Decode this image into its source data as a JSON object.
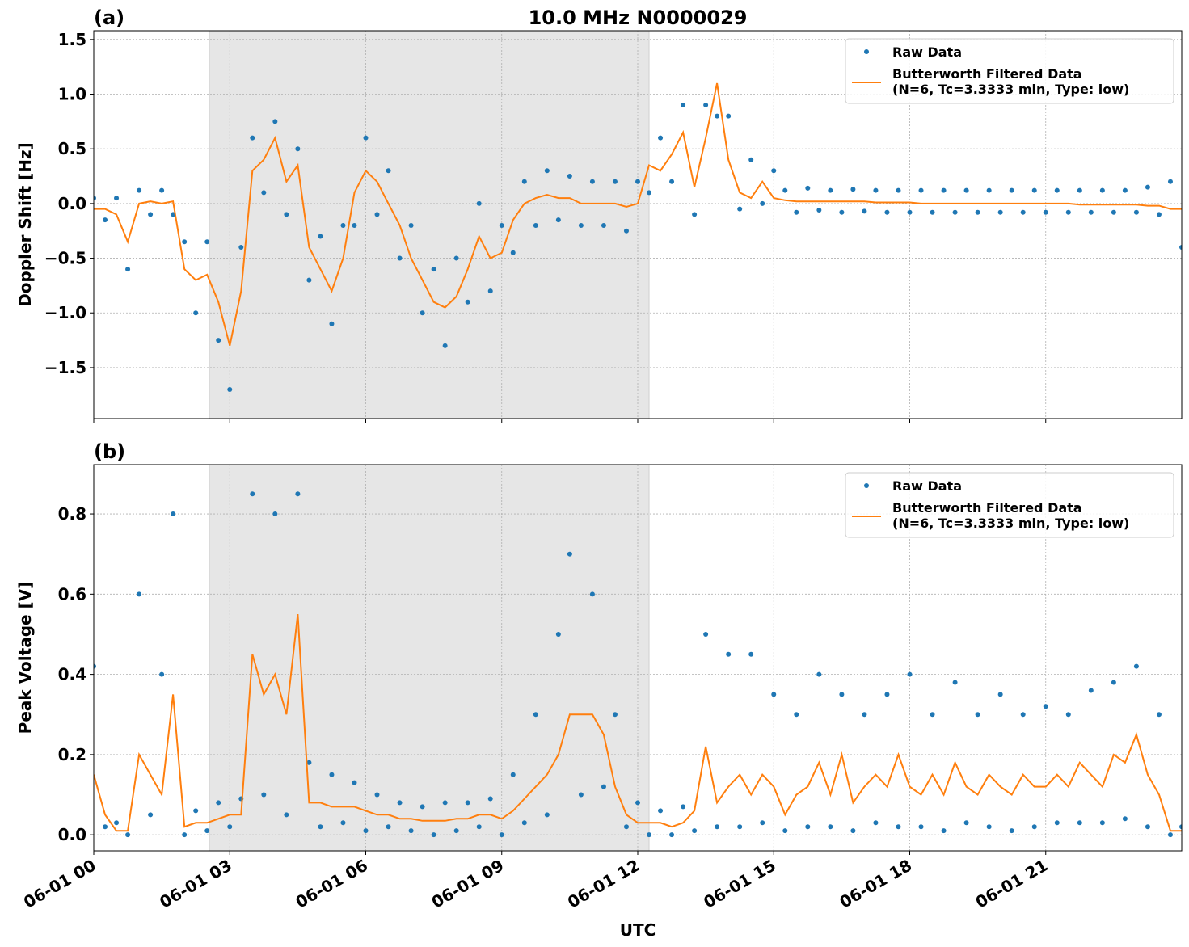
{
  "chart_data": [
    {
      "type": "line",
      "label": "(a)",
      "title": "10.0 MHz N0000029",
      "ylabel": "Doppler Shift [Hz]",
      "xlim": [
        0,
        24
      ],
      "xticks": [
        0,
        3,
        6,
        9,
        12,
        15,
        18,
        21
      ],
      "ylim": [
        -1.966,
        1.58
      ],
      "yticks": [
        -1.5,
        -1.0,
        -0.5,
        0.0,
        0.5,
        1.0,
        1.5
      ],
      "ytick_labels": [
        "−1.5",
        "−1.0",
        "−0.5",
        "0.0",
        "0.5",
        "1.0",
        "1.5"
      ],
      "grid": true,
      "legend": "upper right",
      "highlight_x": [
        2.55,
        12.25
      ],
      "x": [
        0,
        0.25,
        0.5,
        0.75,
        1,
        1.25,
        1.5,
        1.75,
        2,
        2.25,
        2.5,
        2.75,
        3,
        3.25,
        3.5,
        3.75,
        4,
        4.25,
        4.5,
        4.75,
        5,
        5.25,
        5.5,
        5.75,
        6,
        6.25,
        6.5,
        6.75,
        7,
        7.25,
        7.5,
        7.75,
        8,
        8.25,
        8.5,
        8.75,
        9,
        9.25,
        9.5,
        9.75,
        10,
        10.25,
        10.5,
        10.75,
        11,
        11.25,
        11.5,
        11.75,
        12,
        12.25,
        12.5,
        12.75,
        13,
        13.25,
        13.5,
        13.75,
        14,
        14.25,
        14.5,
        14.75,
        15,
        15.25,
        15.5,
        15.75,
        16,
        16.25,
        16.5,
        16.75,
        17,
        17.25,
        17.5,
        17.75,
        18,
        18.25,
        18.5,
        18.75,
        19,
        19.25,
        19.5,
        19.75,
        20,
        20.25,
        20.5,
        20.75,
        21,
        21.25,
        21.5,
        21.75,
        22,
        22.25,
        22.5,
        22.75,
        23,
        23.25,
        23.5,
        23.75,
        24
      ],
      "series": [
        {
          "name": "Raw Data",
          "kind": "scatter",
          "color": "#1f77b4",
          "values": [
            0.05,
            -0.15,
            0.05,
            -0.6,
            0.12,
            -0.1,
            0.12,
            -0.1,
            -0.35,
            -1.0,
            -0.35,
            -1.25,
            -1.7,
            -0.4,
            0.6,
            0.1,
            0.75,
            -0.1,
            0.5,
            -0.7,
            -0.3,
            -1.1,
            -0.2,
            -0.2,
            0.6,
            -0.1,
            0.3,
            -0.5,
            -0.2,
            -1.0,
            -0.6,
            -1.3,
            -0.5,
            -0.9,
            0.0,
            -0.8,
            -0.2,
            -0.45,
            0.2,
            -0.2,
            0.3,
            -0.15,
            0.25,
            -0.2,
            0.2,
            -0.2,
            0.2,
            -0.25,
            0.2,
            0.1,
            0.6,
            0.2,
            0.9,
            -0.1,
            0.9,
            0.8,
            0.8,
            -0.05,
            0.4,
            0.0,
            0.3,
            0.12,
            -0.08,
            0.14,
            -0.06,
            0.12,
            -0.08,
            0.13,
            -0.07,
            0.12,
            -0.08,
            0.12,
            -0.08,
            0.12,
            -0.08,
            0.12,
            -0.08,
            0.12,
            -0.08,
            0.12,
            -0.08,
            0.12,
            -0.08,
            0.12,
            -0.08,
            0.12,
            -0.08,
            0.12,
            -0.08,
            0.12,
            -0.08,
            0.12,
            -0.08,
            0.15,
            -0.1,
            0.2,
            -0.4
          ]
        },
        {
          "name": "Butterworth Filtered Data\n(N=6, Tc=3.3333 min, Type: low)",
          "kind": "line",
          "color": "#ff7f0e",
          "values": [
            -0.05,
            -0.05,
            -0.1,
            -0.35,
            0.0,
            0.02,
            0.0,
            0.02,
            -0.6,
            -0.7,
            -0.65,
            -0.9,
            -1.3,
            -0.8,
            0.3,
            0.4,
            0.6,
            0.2,
            0.35,
            -0.4,
            -0.6,
            -0.8,
            -0.5,
            0.1,
            0.3,
            0.2,
            0.0,
            -0.2,
            -0.5,
            -0.7,
            -0.9,
            -0.95,
            -0.85,
            -0.6,
            -0.3,
            -0.5,
            -0.45,
            -0.15,
            0.0,
            0.05,
            0.08,
            0.05,
            0.05,
            0.0,
            0.0,
            0.0,
            0.0,
            -0.03,
            0.0,
            0.35,
            0.3,
            0.45,
            0.65,
            0.15,
            0.6,
            1.1,
            0.4,
            0.1,
            0.05,
            0.2,
            0.05,
            0.03,
            0.02,
            0.02,
            0.02,
            0.02,
            0.02,
            0.02,
            0.02,
            0.01,
            0.01,
            0.01,
            0.01,
            0.0,
            0.0,
            0.0,
            0.0,
            0.0,
            0.0,
            0.0,
            0.0,
            0.0,
            0.0,
            0.0,
            0.0,
            0.0,
            0.0,
            -0.01,
            -0.01,
            -0.01,
            -0.01,
            -0.01,
            -0.01,
            -0.02,
            -0.02,
            -0.05,
            -0.05
          ]
        }
      ]
    },
    {
      "type": "line",
      "label": "(b)",
      "ylabel": "Peak Voltage [V]",
      "xlabel": "UTC",
      "xlim": [
        0,
        24
      ],
      "xticks": [
        {
          "value": 0,
          "label": "06-01 00"
        },
        {
          "value": 3,
          "label": "06-01 03"
        },
        {
          "value": 6,
          "label": "06-01 06"
        },
        {
          "value": 9,
          "label": "06-01 09"
        },
        {
          "value": 12,
          "label": "06-01 12"
        },
        {
          "value": 15,
          "label": "06-01 15"
        },
        {
          "value": 18,
          "label": "06-01 18"
        },
        {
          "value": 21,
          "label": "06-01 21"
        }
      ],
      "ylim": [
        -0.04,
        0.923
      ],
      "yticks": [
        0.0,
        0.2,
        0.4,
        0.6,
        0.8
      ],
      "ytick_labels": [
        "0.0",
        "0.2",
        "0.4",
        "0.6",
        "0.8"
      ],
      "grid": true,
      "legend": "upper right",
      "highlight_x": [
        2.55,
        12.25
      ],
      "x": [
        0,
        0.25,
        0.5,
        0.75,
        1,
        1.25,
        1.5,
        1.75,
        2,
        2.25,
        2.5,
        2.75,
        3,
        3.25,
        3.5,
        3.75,
        4,
        4.25,
        4.5,
        4.75,
        5,
        5.25,
        5.5,
        5.75,
        6,
        6.25,
        6.5,
        6.75,
        7,
        7.25,
        7.5,
        7.75,
        8,
        8.25,
        8.5,
        8.75,
        9,
        9.25,
        9.5,
        9.75,
        10,
        10.25,
        10.5,
        10.75,
        11,
        11.25,
        11.5,
        11.75,
        12,
        12.25,
        12.5,
        12.75,
        13,
        13.25,
        13.5,
        13.75,
        14,
        14.25,
        14.5,
        14.75,
        15,
        15.25,
        15.5,
        15.75,
        16,
        16.25,
        16.5,
        16.75,
        17,
        17.25,
        17.5,
        17.75,
        18,
        18.25,
        18.5,
        18.75,
        19,
        19.25,
        19.5,
        19.75,
        20,
        20.25,
        20.5,
        20.75,
        21,
        21.25,
        21.5,
        21.75,
        22,
        22.25,
        22.5,
        22.75,
        23,
        23.25,
        23.5,
        23.75,
        24
      ],
      "series": [
        {
          "name": "Raw Data",
          "kind": "scatter",
          "color": "#1f77b4",
          "values": [
            0.42,
            0.02,
            0.03,
            0.0,
            0.6,
            0.05,
            0.4,
            0.8,
            0.0,
            0.06,
            0.01,
            0.08,
            0.02,
            0.09,
            0.85,
            0.1,
            0.8,
            0.05,
            0.85,
            0.18,
            0.02,
            0.15,
            0.03,
            0.13,
            0.01,
            0.1,
            0.02,
            0.08,
            0.01,
            0.07,
            0.0,
            0.08,
            0.01,
            0.08,
            0.02,
            0.09,
            0.0,
            0.15,
            0.03,
            0.3,
            0.05,
            0.5,
            0.7,
            0.1,
            0.6,
            0.12,
            0.3,
            0.02,
            0.08,
            0.0,
            0.06,
            0.0,
            0.07,
            0.01,
            0.5,
            0.02,
            0.45,
            0.02,
            0.45,
            0.03,
            0.35,
            0.01,
            0.3,
            0.02,
            0.4,
            0.02,
            0.35,
            0.01,
            0.3,
            0.03,
            0.35,
            0.02,
            0.4,
            0.02,
            0.3,
            0.01,
            0.38,
            0.03,
            0.3,
            0.02,
            0.35,
            0.01,
            0.3,
            0.02,
            0.32,
            0.03,
            0.3,
            0.03,
            0.36,
            0.03,
            0.38,
            0.04,
            0.42,
            0.02,
            0.3,
            0.0,
            0.02
          ]
        },
        {
          "name": "Butterworth Filtered Data\n(N=6, Tc=3.3333 min, Type: low)",
          "kind": "line",
          "color": "#ff7f0e",
          "values": [
            0.15,
            0.05,
            0.01,
            0.01,
            0.2,
            0.15,
            0.1,
            0.35,
            0.02,
            0.03,
            0.03,
            0.04,
            0.05,
            0.05,
            0.45,
            0.35,
            0.4,
            0.3,
            0.55,
            0.08,
            0.08,
            0.07,
            0.07,
            0.07,
            0.06,
            0.05,
            0.05,
            0.04,
            0.04,
            0.035,
            0.035,
            0.035,
            0.04,
            0.04,
            0.05,
            0.05,
            0.04,
            0.06,
            0.09,
            0.12,
            0.15,
            0.2,
            0.3,
            0.3,
            0.3,
            0.25,
            0.12,
            0.05,
            0.03,
            0.03,
            0.03,
            0.02,
            0.03,
            0.06,
            0.22,
            0.08,
            0.12,
            0.15,
            0.1,
            0.15,
            0.12,
            0.05,
            0.1,
            0.12,
            0.18,
            0.1,
            0.2,
            0.08,
            0.12,
            0.15,
            0.12,
            0.2,
            0.12,
            0.1,
            0.15,
            0.1,
            0.18,
            0.12,
            0.1,
            0.15,
            0.12,
            0.1,
            0.15,
            0.12,
            0.12,
            0.15,
            0.12,
            0.18,
            0.15,
            0.12,
            0.2,
            0.18,
            0.25,
            0.15,
            0.1,
            0.01,
            0.01
          ]
        }
      ]
    }
  ]
}
